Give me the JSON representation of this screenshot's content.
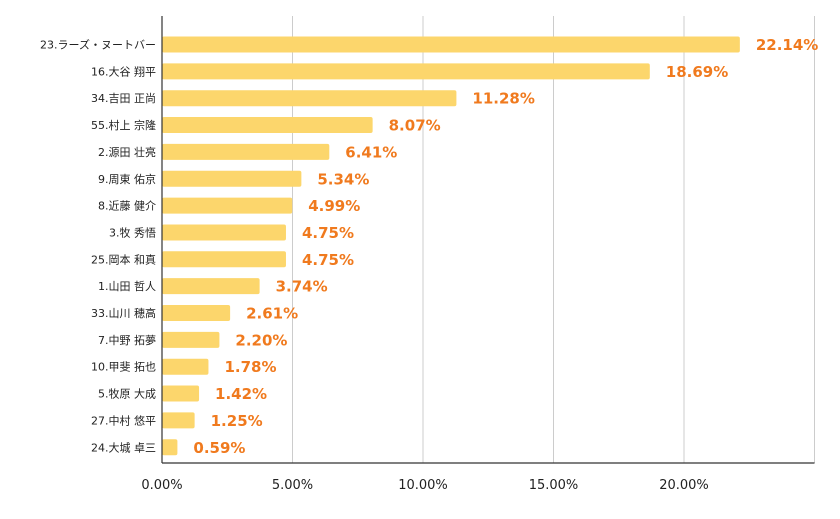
{
  "colors": {
    "bar": "#FCD66C",
    "label": "#F07A1E",
    "grid": "#CCCCCC",
    "axis": "#333333",
    "text": "#222222"
  },
  "chart_data": {
    "type": "bar",
    "orientation": "horizontal",
    "categories": [
      "23.ラーズ・ヌートバー",
      "16.大谷 翔平",
      "34.吉田 正尚",
      "55.村上 宗隆",
      "2.源田 壮亮",
      "9.周東 佑京",
      "8.近藤 健介",
      "3.牧 秀悟",
      "25.岡本 和真",
      "1.山田 哲人",
      "33.山川 穂高",
      "7.中野 拓夢",
      "10.甲斐 拓也",
      "5.牧原 大成",
      "27.中村 悠平",
      "24.大城 卓三"
    ],
    "values": [
      22.14,
      18.69,
      11.28,
      8.07,
      6.41,
      5.34,
      4.99,
      4.75,
      4.75,
      3.74,
      2.61,
      2.2,
      1.78,
      1.42,
      1.25,
      0.59
    ],
    "data_labels": [
      "22.14%",
      "18.69%",
      "11.28%",
      "8.07%",
      "6.41%",
      "5.34%",
      "4.99%",
      "4.75%",
      "4.75%",
      "3.74%",
      "2.61%",
      "2.20%",
      "1.78%",
      "1.42%",
      "1.25%",
      "0.59%"
    ],
    "x_ticks": [
      0,
      5,
      10,
      15,
      20
    ],
    "x_tick_labels": [
      "0.00%",
      "5.00%",
      "10.00%",
      "15.00%",
      "20.00%"
    ],
    "xlim": [
      0,
      25
    ],
    "grid": true,
    "title": "",
    "xlabel": "",
    "ylabel": ""
  }
}
